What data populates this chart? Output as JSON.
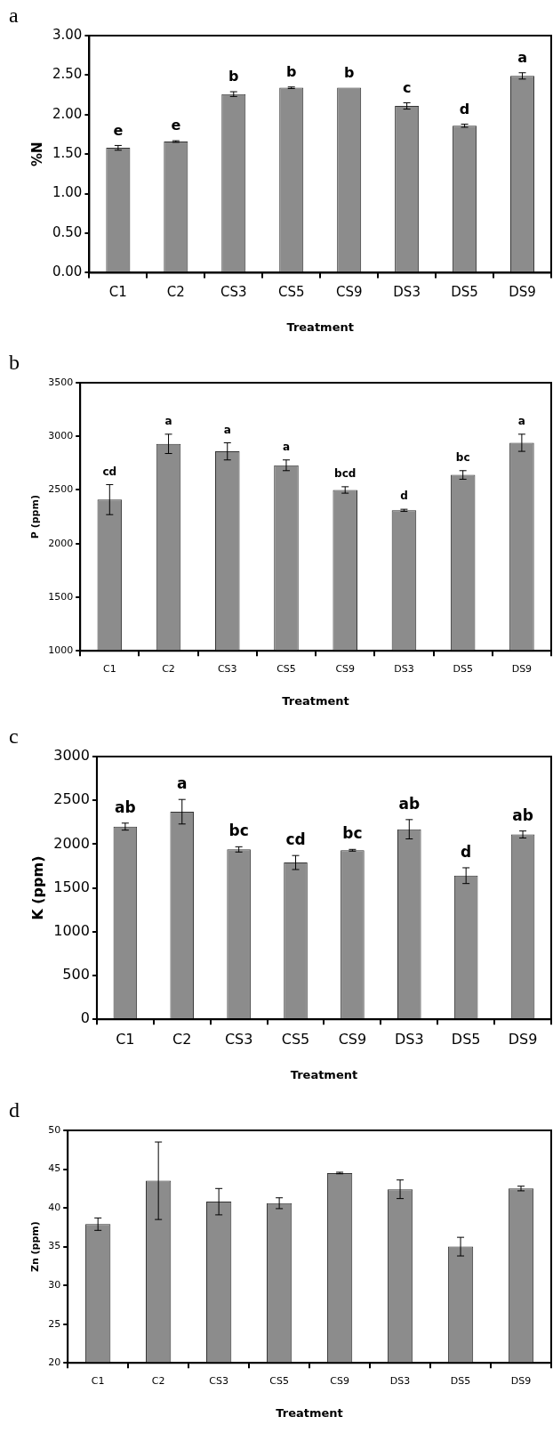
{
  "chart_data": [
    {
      "type": "bar",
      "title": "a",
      "xlabel": "Treatment",
      "ylabel": "%N",
      "categories": [
        "C1",
        "C2",
        "CS3",
        "CS5",
        "CS9",
        "DS3",
        "DS5",
        "DS9"
      ],
      "color": "#8c8c8c",
      "values": [
        1.58,
        1.66,
        2.26,
        2.34,
        2.34,
        2.11,
        1.86,
        2.49
      ],
      "errors": [
        0.03,
        0.01,
        0.03,
        0.01,
        null,
        0.04,
        0.02,
        0.04
      ],
      "ylim": [
        0,
        3
      ],
      "yticks": [
        {
          "value": 0,
          "label": "0.00"
        },
        {
          "value": 0.5,
          "label": "0.50"
        },
        {
          "value": 1,
          "label": "1.00"
        },
        {
          "value": 1.5,
          "label": "1.50"
        },
        {
          "value": 2,
          "label": "2.00"
        },
        {
          "value": 2.5,
          "label": "2.50"
        },
        {
          "value": 3,
          "label": "3.00"
        }
      ],
      "annotations": [
        {
          "text": "e",
          "x": "C1",
          "y": 1.61
        },
        {
          "text": "e",
          "x": "C2",
          "y": 1.67
        },
        {
          "text": "b",
          "x": "CS3",
          "y": 2.29
        },
        {
          "text": "b",
          "x": "CS5",
          "y": 2.35
        },
        {
          "text": "b",
          "x": "CS9",
          "y": 2.34
        },
        {
          "text": "c",
          "x": "DS3",
          "y": 2.15
        },
        {
          "text": "d",
          "x": "DS5",
          "y": 1.88
        },
        {
          "text": "a",
          "x": "DS9",
          "y": 2.53
        }
      ]
    },
    {
      "type": "bar",
      "title": "b",
      "xlabel": "Treatment",
      "ylabel": "P (ppm)",
      "categories": [
        "C1",
        "C2",
        "CS3",
        "CS5",
        "CS9",
        "DS3",
        "DS5",
        "DS9"
      ],
      "color": "#8c8c8c",
      "values": [
        2410,
        2930,
        2860,
        2730,
        2500,
        2310,
        2640,
        2940
      ],
      "errors": [
        140,
        90,
        80,
        50,
        30,
        10,
        40,
        80
      ],
      "ylim": [
        1000,
        3500
      ],
      "yticks": [
        1000,
        1500,
        2000,
        2500,
        3000,
        3500
      ],
      "annotations": [
        {
          "text": "cd",
          "x": "C1",
          "y": 2550
        },
        {
          "text": "a",
          "x": "C2",
          "y": 3020
        },
        {
          "text": "a",
          "x": "CS3",
          "y": 2940
        },
        {
          "text": "a",
          "x": "CS5",
          "y": 2780
        },
        {
          "text": "bcd",
          "x": "CS9",
          "y": 2530
        },
        {
          "text": "d",
          "x": "DS3",
          "y": 2320
        },
        {
          "text": "bc",
          "x": "DS5",
          "y": 2680
        },
        {
          "text": "a",
          "x": "DS9",
          "y": 3020
        }
      ]
    },
    {
      "type": "bar",
      "title": "c",
      "xlabel": "Treatment",
      "ylabel": "K (ppm)",
      "categories": [
        "C1",
        "C2",
        "CS3",
        "CS5",
        "CS9",
        "DS3",
        "DS5",
        "DS9"
      ],
      "color": "#8c8c8c",
      "values": [
        2200,
        2370,
        1940,
        1790,
        1930,
        2170,
        1640,
        2110
      ],
      "errors": [
        40,
        140,
        30,
        80,
        10,
        110,
        90,
        40
      ],
      "ylim": [
        0,
        3000
      ],
      "yticks": [
        0,
        500,
        1000,
        1500,
        2000,
        2500,
        3000
      ],
      "annotations": [
        {
          "text": "ab",
          "x": "C1",
          "y": 2240
        },
        {
          "text": "a",
          "x": "C2",
          "y": 2510
        },
        {
          "text": "bc",
          "x": "CS3",
          "y": 1970
        },
        {
          "text": "cd",
          "x": "CS5",
          "y": 1870
        },
        {
          "text": "bc",
          "x": "CS9",
          "y": 1940
        },
        {
          "text": "ab",
          "x": "DS3",
          "y": 2280
        },
        {
          "text": "d",
          "x": "DS5",
          "y": 1730
        },
        {
          "text": "ab",
          "x": "DS9",
          "y": 2150
        }
      ]
    },
    {
      "type": "bar",
      "title": "d",
      "xlabel": "Treatment",
      "ylabel": "Zn (ppm)",
      "categories": [
        "C1",
        "C2",
        "CS3",
        "CS5",
        "CS9",
        "DS3",
        "DS5",
        "DS9"
      ],
      "color": "#8c8c8c",
      "values": [
        37.9,
        43.5,
        40.8,
        40.6,
        44.5,
        42.4,
        35.0,
        42.5
      ],
      "errors": [
        0.8,
        5,
        1.7,
        0.7,
        0.1,
        1.2,
        1.2,
        0.3
      ],
      "ylim": [
        20,
        50
      ],
      "yticks": [
        20,
        25,
        30,
        35,
        40,
        45,
        50
      ]
    }
  ]
}
